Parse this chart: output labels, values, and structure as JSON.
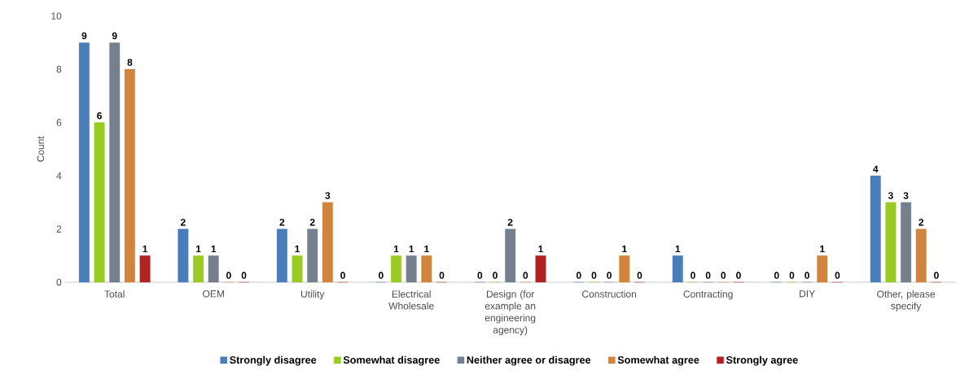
{
  "chart_data": {
    "type": "bar",
    "ylabel": "Count",
    "categories": [
      "Total",
      "OEM",
      "Utility",
      "Electrical Wholesale",
      "Design (for example an engineering agency)",
      "Construction",
      "Contracting",
      "DIY",
      "Other, please specify"
    ],
    "series": [
      {
        "name": "Strongly disagree",
        "color": "#4a7ebb",
        "values": [
          9,
          2,
          2,
          0,
          0,
          0,
          1,
          0,
          4
        ]
      },
      {
        "name": "Somewhat disagree",
        "color": "#99cc22",
        "values": [
          6,
          1,
          1,
          1,
          0,
          0,
          0,
          0,
          3
        ]
      },
      {
        "name": "Neither agree or disagree",
        "color": "#75808f",
        "values": [
          9,
          1,
          2,
          1,
          2,
          0,
          0,
          0,
          3
        ]
      },
      {
        "name": "Somewhat agree",
        "color": "#d0843c",
        "values": [
          8,
          0,
          3,
          1,
          0,
          1,
          0,
          1,
          2
        ]
      },
      {
        "name": "Strongly agree",
        "color": "#b22222",
        "values": [
          1,
          0,
          0,
          0,
          1,
          0,
          0,
          0,
          0
        ]
      }
    ],
    "ylim": [
      0,
      10
    ],
    "yticks": [
      0,
      2,
      4,
      6,
      8,
      10
    ],
    "data_labels": true,
    "legend": "bottom",
    "grid": false
  }
}
